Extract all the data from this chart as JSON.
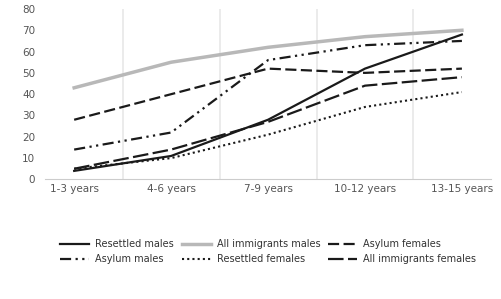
{
  "x_labels": [
    "1-3 years",
    "4-6 years",
    "7-9 years",
    "10-12 years",
    "13-15 years"
  ],
  "x_positions": [
    0,
    1,
    2,
    3,
    4
  ],
  "series": {
    "resettled_males": [
      4,
      11,
      28,
      52,
      68
    ],
    "asylum_males": [
      14,
      22,
      56,
      63,
      65
    ],
    "all_immigrants_males": [
      43,
      55,
      62,
      67,
      70
    ],
    "resettled_females": [
      5,
      10,
      21,
      34,
      41
    ],
    "asylum_females": [
      28,
      40,
      52,
      50,
      52
    ],
    "all_immigrants_females": [
      5,
      14,
      27,
      44,
      48
    ]
  },
  "ylim": [
    0,
    80
  ],
  "yticks": [
    0,
    10,
    20,
    30,
    40,
    50,
    60,
    70,
    80
  ],
  "plot_bg": "#ffffff",
  "fig_bg": "#ffffff",
  "divider_color": "#e8e8e8",
  "axis_color": "#cccccc"
}
